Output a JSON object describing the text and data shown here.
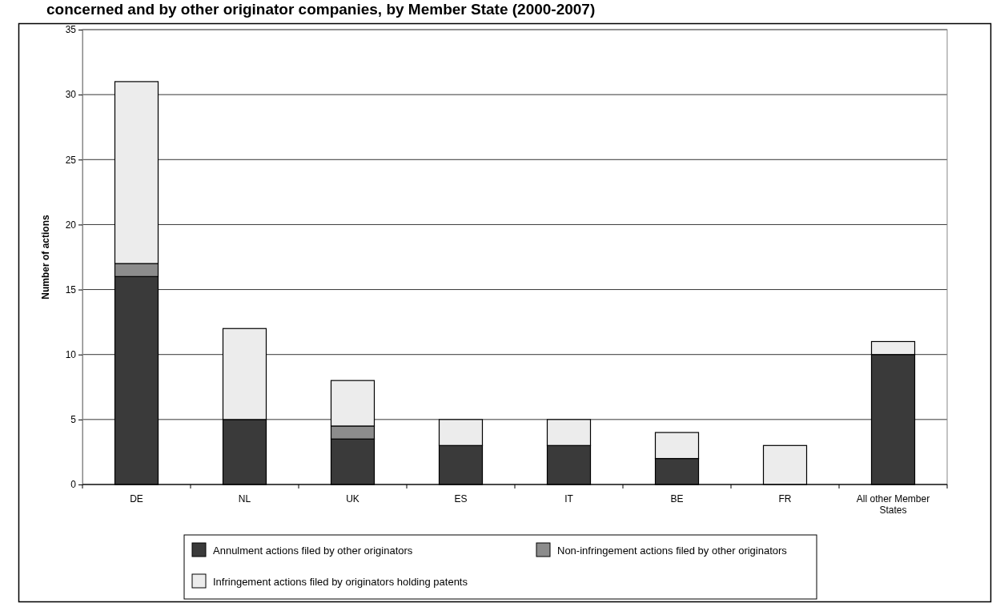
{
  "chart_data": {
    "type": "bar",
    "title": "concerned and by other originator companies, by Member State (2000-2007)",
    "ylabel": "Number of actions",
    "categories": [
      "DE",
      "NL",
      "UK",
      "ES",
      "IT",
      "BE",
      "FR",
      "All other Member States"
    ],
    "stacked": true,
    "series": [
      {
        "name": "Annulment actions filed by other originators",
        "color": "#3a3a3a",
        "values": [
          16,
          5,
          3.5,
          3,
          3,
          2,
          0,
          10
        ]
      },
      {
        "name": "Non-infringement actions filed by other originators",
        "color": "#8c8c8c",
        "values": [
          1,
          0,
          1,
          0,
          0,
          0,
          0,
          0
        ]
      },
      {
        "name": "Infringement actions filed by originators holding patents",
        "color": "#ececec",
        "values": [
          14,
          7,
          3.5,
          2,
          2,
          2,
          3,
          1
        ]
      }
    ],
    "ylim": [
      0,
      35
    ],
    "yticks": [
      0,
      5,
      10,
      15,
      20,
      25,
      30,
      35
    ],
    "grid": "y",
    "legend": "bottom"
  }
}
